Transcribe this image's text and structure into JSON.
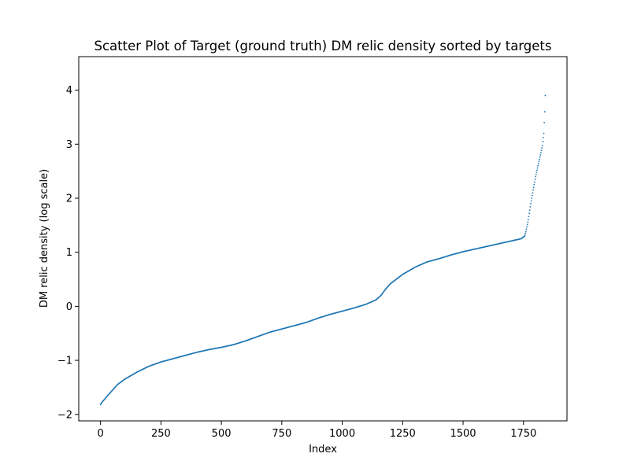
{
  "chart_data": {
    "type": "scatter",
    "title": "Scatter Plot of Target (ground truth) DM relic density sorted by targets",
    "xlabel": "Index",
    "ylabel": "DM relic density (log scale)",
    "xlim": [
      -90,
      1930
    ],
    "ylim": [
      -2.12,
      4.62
    ],
    "xticks": [
      0,
      250,
      500,
      750,
      1000,
      1250,
      1500,
      1750
    ],
    "yticks": [
      -2,
      -1,
      0,
      1,
      2,
      3,
      4
    ],
    "xtick_labels": [
      "0",
      "250",
      "500",
      "750",
      "1000",
      "1250",
      "1500",
      "1750"
    ],
    "ytick_labels": [
      "−2",
      "−1",
      "0",
      "1",
      "2",
      "3",
      "4"
    ],
    "grid": false,
    "marker_color": "#1f77b4",
    "n_points": 1842,
    "curve_knots": [
      [
        0,
        -1.82
      ],
      [
        5,
        -1.78
      ],
      [
        15,
        -1.73
      ],
      [
        30,
        -1.65
      ],
      [
        50,
        -1.55
      ],
      [
        70,
        -1.45
      ],
      [
        100,
        -1.35
      ],
      [
        150,
        -1.22
      ],
      [
        200,
        -1.11
      ],
      [
        250,
        -1.03
      ],
      [
        300,
        -0.97
      ],
      [
        350,
        -0.91
      ],
      [
        400,
        -0.85
      ],
      [
        450,
        -0.8
      ],
      [
        500,
        -0.76
      ],
      [
        550,
        -0.71
      ],
      [
        600,
        -0.64
      ],
      [
        650,
        -0.56
      ],
      [
        700,
        -0.48
      ],
      [
        750,
        -0.42
      ],
      [
        800,
        -0.36
      ],
      [
        850,
        -0.3
      ],
      [
        900,
        -0.22
      ],
      [
        950,
        -0.15
      ],
      [
        1000,
        -0.09
      ],
      [
        1050,
        -0.03
      ],
      [
        1100,
        0.04
      ],
      [
        1140,
        0.12
      ],
      [
        1160,
        0.2
      ],
      [
        1180,
        0.32
      ],
      [
        1200,
        0.42
      ],
      [
        1250,
        0.59
      ],
      [
        1300,
        0.72
      ],
      [
        1350,
        0.82
      ],
      [
        1400,
        0.88
      ],
      [
        1450,
        0.95
      ],
      [
        1500,
        1.01
      ],
      [
        1550,
        1.06
      ],
      [
        1600,
        1.11
      ],
      [
        1650,
        1.16
      ],
      [
        1700,
        1.21
      ],
      [
        1740,
        1.25
      ],
      [
        1755,
        1.3
      ],
      [
        1760,
        1.38
      ],
      [
        1770,
        1.6
      ],
      [
        1780,
        1.9
      ],
      [
        1790,
        2.15
      ],
      [
        1800,
        2.4
      ],
      [
        1810,
        2.6
      ],
      [
        1820,
        2.8
      ],
      [
        1828,
        2.97
      ],
      [
        1834,
        3.2
      ],
      [
        1838,
        3.6
      ],
      [
        1840,
        3.9
      ],
      [
        1842,
        4.3
      ]
    ]
  }
}
